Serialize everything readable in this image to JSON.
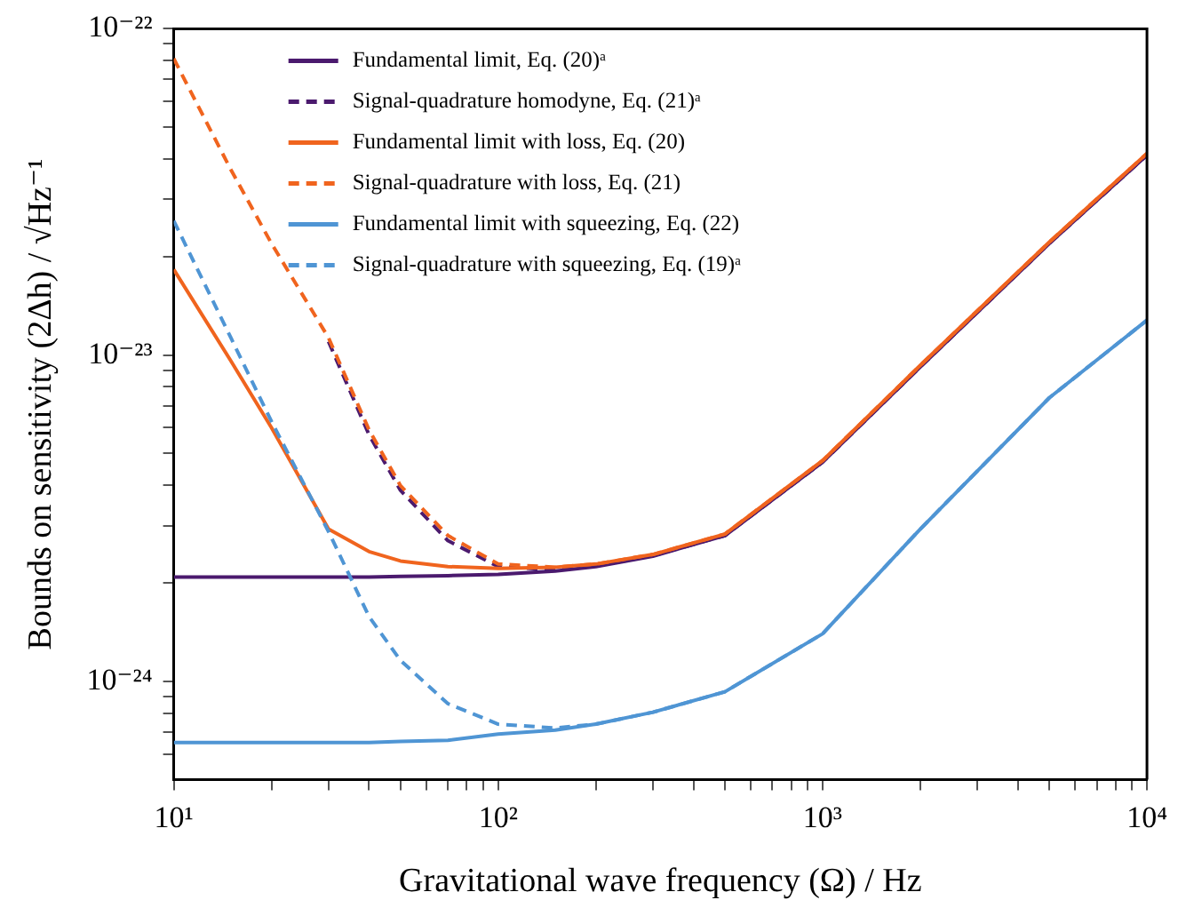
{
  "chart_data": {
    "type": "line",
    "xlabel": "Gravitational wave frequency (Ω) / Hz",
    "ylabel": "Bounds on sensitivity (2Δh) / √Hz⁻¹",
    "log": "xy",
    "legend": "top",
    "grid": false,
    "x": [
      10,
      15,
      20,
      30,
      40,
      50,
      70,
      100,
      150,
      200,
      300,
      500,
      1000,
      2000,
      5000,
      10000
    ],
    "xlim": [
      10,
      10000
    ],
    "xticks": [
      {
        "value": 10,
        "label": "10¹"
      },
      {
        "value": 20,
        "label": null
      },
      {
        "value": 30,
        "label": null
      },
      {
        "value": 40,
        "label": null
      },
      {
        "value": 50,
        "label": null
      },
      {
        "value": 60,
        "label": null
      },
      {
        "value": 70,
        "label": null
      },
      {
        "value": 80,
        "label": null
      },
      {
        "value": 90,
        "label": null
      },
      {
        "value": 100,
        "label": "10²"
      },
      {
        "value": 200,
        "label": null
      },
      {
        "value": 300,
        "label": null
      },
      {
        "value": 400,
        "label": null
      },
      {
        "value": 500,
        "label": null
      },
      {
        "value": 600,
        "label": null
      },
      {
        "value": 700,
        "label": null
      },
      {
        "value": 800,
        "label": null
      },
      {
        "value": 900,
        "label": null
      },
      {
        "value": 1000,
        "label": "10³"
      },
      {
        "value": 2000,
        "label": null
      },
      {
        "value": 3000,
        "label": null
      },
      {
        "value": 4000,
        "label": null
      },
      {
        "value": 5000,
        "label": null
      },
      {
        "value": 6000,
        "label": null
      },
      {
        "value": 7000,
        "label": null
      },
      {
        "value": 8000,
        "label": null
      },
      {
        "value": 9000,
        "label": null
      },
      {
        "value": 10000,
        "label": "10⁴"
      }
    ],
    "ylim": [
      5e-25,
      1e-22
    ],
    "yticks": [
      {
        "value": 6e-25,
        "label": null
      },
      {
        "value": 7e-25,
        "label": null
      },
      {
        "value": 8e-25,
        "label": null
      },
      {
        "value": 9e-25,
        "label": null
      },
      {
        "value": 1e-24,
        "label": "10⁻²⁴"
      },
      {
        "value": 2e-24,
        "label": null
      },
      {
        "value": 3e-24,
        "label": null
      },
      {
        "value": 4e-24,
        "label": null
      },
      {
        "value": 5e-24,
        "label": null
      },
      {
        "value": 6e-24,
        "label": null
      },
      {
        "value": 7e-24,
        "label": null
      },
      {
        "value": 8e-24,
        "label": null
      },
      {
        "value": 9e-24,
        "label": null
      },
      {
        "value": 1e-23,
        "label": "10⁻²³"
      },
      {
        "value": 2e-23,
        "label": null
      },
      {
        "value": 3e-23,
        "label": null
      },
      {
        "value": 4e-23,
        "label": null
      },
      {
        "value": 5e-23,
        "label": null
      },
      {
        "value": 6e-23,
        "label": null
      },
      {
        "value": 7e-23,
        "label": null
      },
      {
        "value": 8e-23,
        "label": null
      },
      {
        "value": 9e-23,
        "label": null
      },
      {
        "value": 1e-22,
        "label": "10⁻²²"
      }
    ],
    "series": [
      {
        "name": "Fundamental limit, Eq. (20)ᵃ",
        "color": "#4b1a6e",
        "line_style": "solid",
        "values": [
          2.09e-24,
          2.09e-24,
          2.09e-24,
          2.09e-24,
          2.09e-24,
          2.1e-24,
          2.11e-24,
          2.13e-24,
          2.18e-24,
          2.25e-24,
          2.42e-24,
          2.8e-24,
          4.7e-24,
          9.2e-24,
          2.2e-23,
          4.1e-23
        ]
      },
      {
        "name": "Signal-quadrature homodyne, Eq. (21)ᵃ",
        "color": "#4b1a6e",
        "line_style": "dashed",
        "values": [
          null,
          null,
          null,
          1.1e-23,
          5.7e-24,
          3.85e-24,
          2.7e-24,
          2.25e-24,
          2.2e-24,
          2.26e-24,
          2.43e-24,
          2.8e-24,
          4.7e-24,
          9.2e-24,
          2.2e-23,
          4.1e-23
        ]
      },
      {
        "name": "Fundamental limit with loss, Eq. (20)",
        "color": "#f0641e",
        "line_style": "solid",
        "values": [
          1.83e-23,
          9.6e-24,
          6e-24,
          2.93e-24,
          2.5e-24,
          2.34e-24,
          2.25e-24,
          2.22e-24,
          2.24e-24,
          2.29e-24,
          2.45e-24,
          2.83e-24,
          4.75e-24,
          9.3e-24,
          2.22e-23,
          4.15e-23
        ]
      },
      {
        "name": "Signal-quadrature with loss, Eq. (21)",
        "color": "#f0641e",
        "line_style": "dashed",
        "values": [
          8.1e-23,
          3.7e-23,
          2.2e-23,
          1.13e-23,
          5.9e-24,
          3.98e-24,
          2.8e-24,
          2.29e-24,
          2.24e-24,
          2.29e-24,
          2.45e-24,
          2.83e-24,
          4.75e-24,
          9.3e-24,
          2.22e-23,
          4.15e-23
        ]
      },
      {
        "name": "Fundamental limit with squeezing, Eq. (22)",
        "color": "#4f95d4",
        "line_style": "solid",
        "values": [
          6.5e-25,
          6.5e-25,
          6.5e-25,
          6.5e-25,
          6.5e-25,
          6.55e-25,
          6.6e-25,
          6.9e-25,
          7.1e-25,
          7.4e-25,
          8.05e-25,
          9.3e-25,
          1.4e-24,
          2.93e-24,
          7.4e-24,
          1.28e-23
        ]
      },
      {
        "name": "Signal-quadrature with squeezing, Eq. (19)ᵃ",
        "color": "#4f95d4",
        "line_style": "dashed",
        "values": [
          2.58e-23,
          1.13e-23,
          6.27e-24,
          2.88e-24,
          1.58e-24,
          1.16e-24,
          8.55e-25,
          7.4e-25,
          7.2e-25,
          7.4e-25,
          8.05e-25,
          9.3e-25,
          1.4e-24,
          2.93e-24,
          7.4e-24,
          1.28e-23
        ]
      }
    ]
  }
}
